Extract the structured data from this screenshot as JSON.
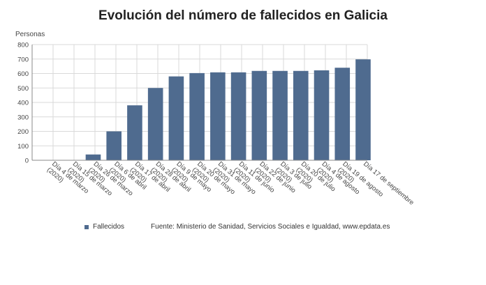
{
  "colors": {
    "bar": "#4f6b8f",
    "grid": "#d9d9d9",
    "axis": "#888888"
  },
  "legend": {
    "series_label": "Fallecidos",
    "source": "Fuente: Ministerio de Sanidad, Servicios Sociales e Igualdad, www.epdata.es"
  },
  "chart_data": {
    "type": "bar",
    "title": "Evolución del número de fallecidos en Galicia",
    "ylabel": "Personas",
    "xlabel": "",
    "ylim": [
      0,
      800
    ],
    "yticks": [
      0,
      100,
      200,
      300,
      400,
      500,
      600,
      700,
      800
    ],
    "grid": true,
    "legend_position": "bottom-left",
    "categories": [
      "Día 4 de marzo (2020)",
      "Día 15 de marzo (2020)",
      "Día 26 de marzo (2020)",
      "Día 6 de abril (2020)",
      "Día 17 de abril (2020)",
      "Día 28 de abril (2020)",
      "Día 9 de mayo (2020)",
      "Día 20 de mayo (2020)",
      "Día 31 de mayo (2020)",
      "Día 11 de junio (2020)",
      "Día 22 de junio (2020)",
      "Día 3 de julio (2020)",
      "Día 20 de julio (2020)",
      "Día 4 de agosto (2020)",
      "Día 19 de agosto (2020)",
      "Día 17 de septiembre"
    ],
    "series": [
      {
        "name": "Fallecidos",
        "values": [
          0,
          2,
          40,
          200,
          380,
          500,
          580,
          603,
          608,
          608,
          618,
          618,
          618,
          622,
          640,
          698
        ]
      }
    ]
  }
}
